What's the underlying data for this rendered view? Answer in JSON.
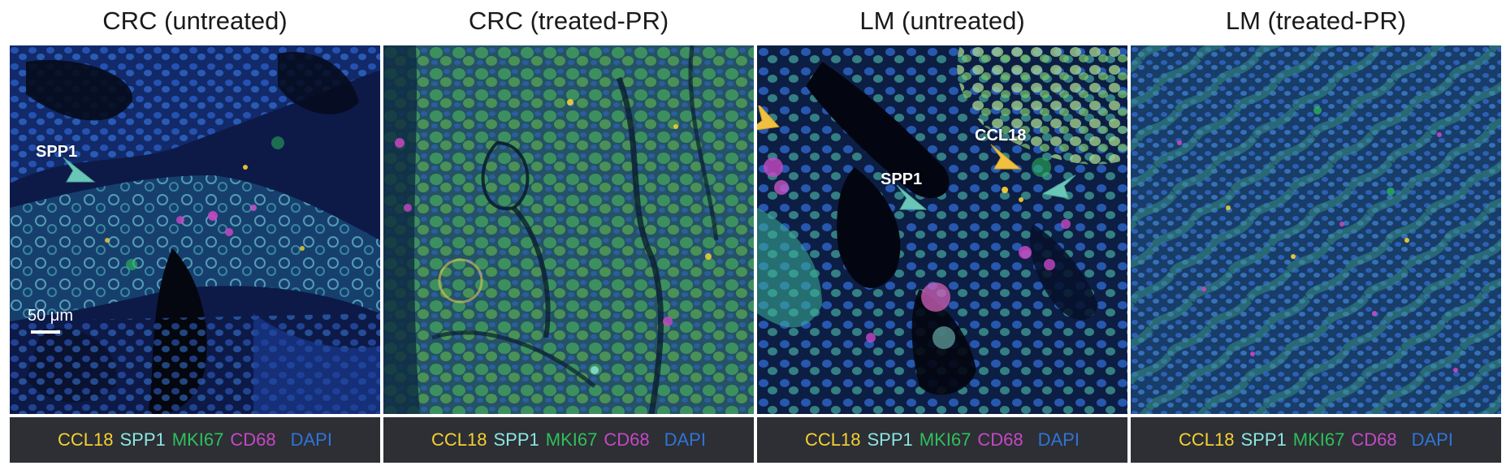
{
  "panels": [
    {
      "title": "CRC (untreated)",
      "annotations": [
        "SPP1"
      ],
      "scale_bar_label": "50 μm",
      "legend": [
        "CCL18",
        "SPP1",
        "MKI67",
        "CD68",
        "DAPI"
      ]
    },
    {
      "title": "CRC (treated-PR)",
      "annotations": [],
      "legend": [
        "CCL18",
        "SPP1",
        "MKI67",
        "CD68",
        "DAPI"
      ]
    },
    {
      "title": "LM (untreated)",
      "annotations": [
        "CCL18",
        "SPP1"
      ],
      "legend": [
        "CCL18",
        "SPP1",
        "MKI67",
        "CD68",
        "DAPI"
      ]
    },
    {
      "title": "LM (treated-PR)",
      "annotations": [],
      "legend": [
        "CCL18",
        "SPP1",
        "MKI67",
        "CD68",
        "DAPI"
      ]
    }
  ],
  "colors": {
    "CCL18": "#f5d132",
    "SPP1": "#8ce6e0",
    "MKI67": "#2ec05a",
    "CD68": "#c548c4",
    "DAPI": "#2f74d8"
  },
  "arrow_icons": {
    "SPP1": "teal-arrowhead-icon",
    "CCL18": "yellow-arrowhead-icon"
  }
}
